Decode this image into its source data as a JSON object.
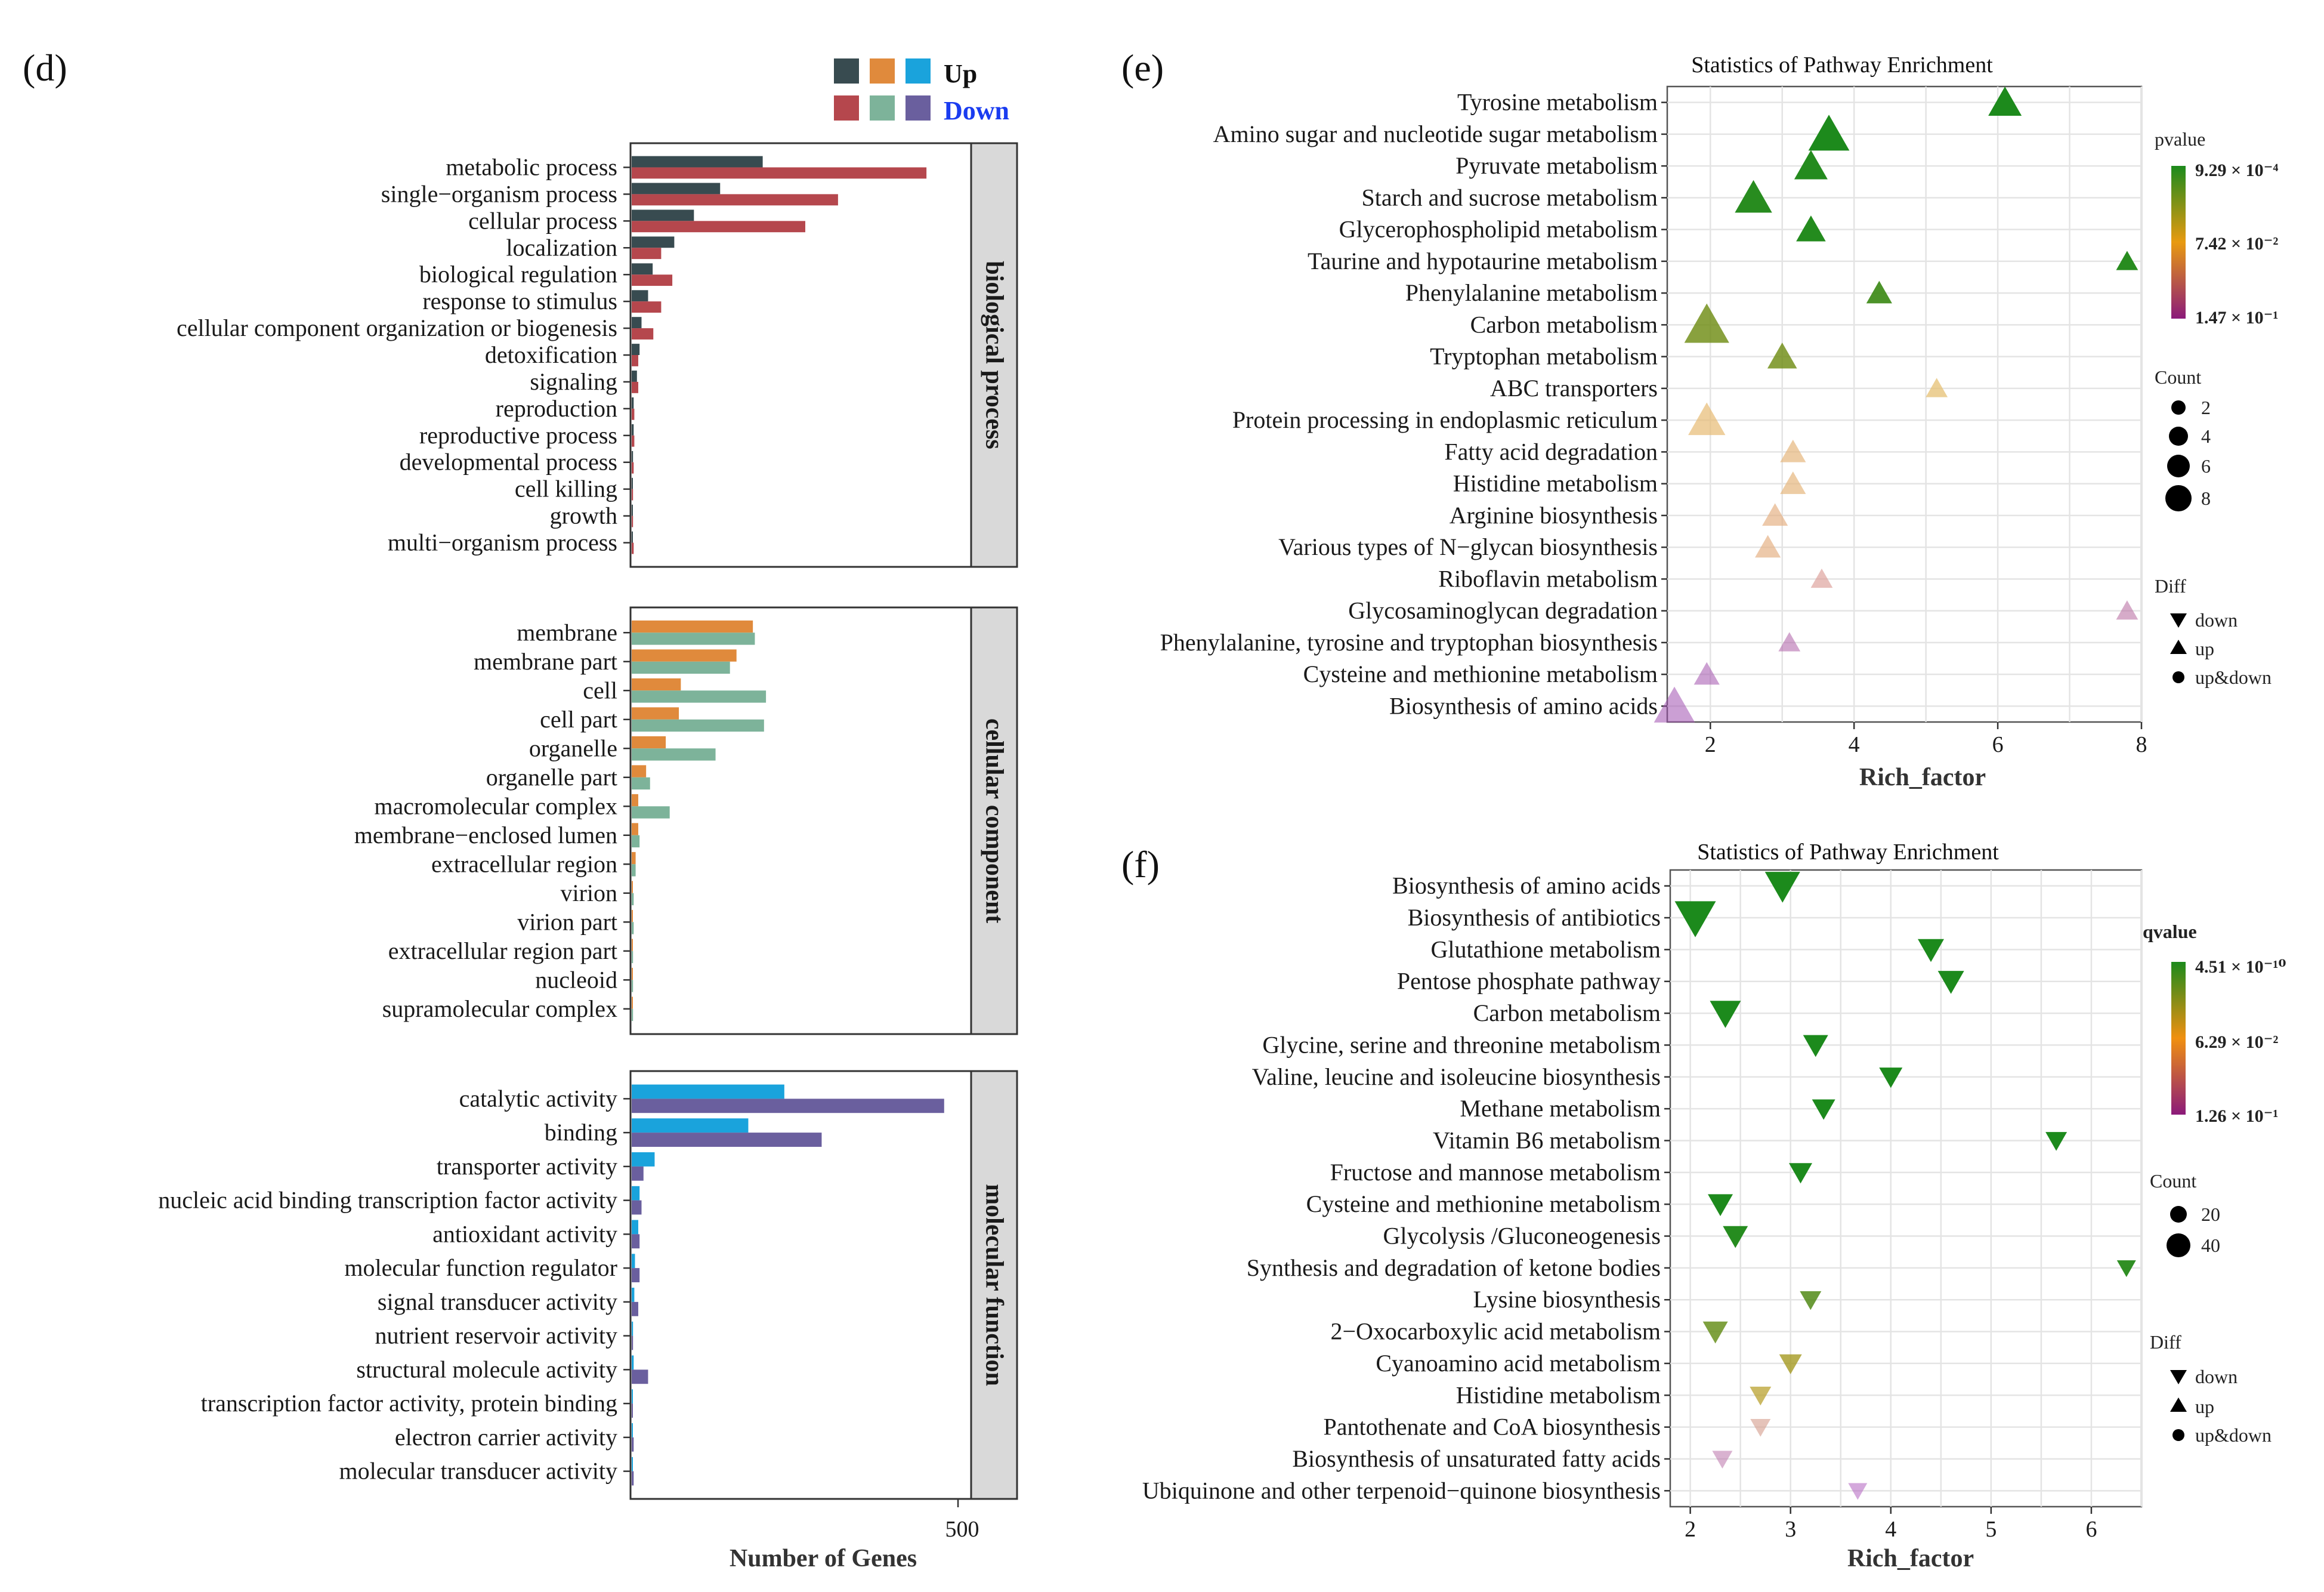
{
  "chart_data": [
    {
      "panel": "(d)",
      "type": "bar",
      "orientation": "horizontal",
      "xlabel": "Number of Genes",
      "xticks": [
        "500"
      ],
      "xlim": [
        0,
        520
      ],
      "legend": {
        "up_label": "Up",
        "down_label": "Down",
        "up_colors": [
          "#384B50",
          "#E08A3C",
          "#1AA3DC"
        ],
        "down_colors": [
          "#B5474D",
          "#7DB39A",
          "#6A5F9E"
        ]
      },
      "facets": [
        {
          "name": "biological process",
          "up_color": "#384B50",
          "down_color": "#B5474D",
          "categories": [
            "metabolic process",
            "single−organism process",
            "cellular process",
            "localization",
            "biological regulation",
            "response to stimulus",
            "cellular component organization or biogenesis",
            "detoxification",
            "signaling",
            "reproduction",
            "reproductive process",
            "developmental process",
            "cell killing",
            "growth",
            "multi−organism process"
          ],
          "up": [
            200,
            135,
            95,
            65,
            32,
            25,
            15,
            12,
            8,
            3,
            3,
            2,
            1,
            1,
            1
          ],
          "down": [
            450,
            315,
            265,
            45,
            62,
            45,
            33,
            10,
            10,
            4,
            4,
            3,
            2,
            2,
            3
          ]
        },
        {
          "name": "cellular component",
          "up_color": "#E08A3C",
          "down_color": "#7DB39A",
          "categories": [
            "membrane",
            "membrane part",
            "cell",
            "cell part",
            "organelle",
            "organelle part",
            "macromolecular complex",
            "membrane−enclosed lumen",
            "extracellular region",
            "virion",
            "virion part",
            "extracellular region part",
            "nucleoid",
            "supramolecular complex"
          ],
          "up": [
            185,
            160,
            75,
            72,
            52,
            22,
            10,
            10,
            6,
            1,
            1,
            1,
            1,
            1
          ],
          "down": [
            188,
            150,
            205,
            202,
            128,
            28,
            58,
            12,
            6,
            3,
            3,
            2,
            2,
            2
          ]
        },
        {
          "name": "molecular function",
          "up_color": "#1AA3DC",
          "down_color": "#6A5F9E",
          "categories": [
            "catalytic activity",
            "binding",
            "transporter activity",
            "nucleic acid binding transcription factor activity",
            "antioxidant activity",
            "molecular function regulator",
            "signal transducer activity",
            "nutrient reservoir activity",
            "structural molecule activity",
            "transcription factor activity, protein binding",
            "electron carrier activity",
            "molecular transducer activity"
          ],
          "up": [
            233,
            178,
            35,
            12,
            10,
            5,
            4,
            2,
            3,
            1,
            1,
            1
          ],
          "down": [
            477,
            290,
            18,
            15,
            12,
            12,
            10,
            2,
            25,
            1,
            3,
            3
          ]
        }
      ]
    },
    {
      "panel": "(e)",
      "type": "scatter",
      "title": "Statistics of Pathway Enrichment",
      "xlabel": "Rich_factor",
      "xlim": [
        1.4,
        8.0
      ],
      "xticks": [
        2,
        4,
        6,
        8
      ],
      "color_legend_title": "pvalue",
      "color_labels": [
        "9.29 × 10⁻⁴",
        "7.42 × 10⁻²",
        "1.47 × 10⁻¹"
      ],
      "size_legend_title": "Count",
      "size_labels": [
        "2",
        "4",
        "6",
        "8"
      ],
      "shape_legend_title": "Diff",
      "shape_labels": [
        "down",
        "up",
        "up&down"
      ],
      "categories": [
        "Tyrosine metabolism",
        "Amino sugar and nucleotide sugar metabolism",
        "Pyruvate metabolism",
        "Starch and sucrose metabolism",
        "Glycerophospholipid metabolism",
        "Taurine and hypotaurine metabolism",
        "Phenylalanine metabolism",
        "Carbon metabolism",
        "Tryptophan metabolism",
        "ABC transporters",
        "Protein processing in endoplasmic reticulum",
        "Fatty acid degradation",
        "Histidine metabolism",
        "Arginine biosynthesis",
        "Various types of N−glycan biosynthesis",
        "Riboflavin metabolism",
        "Glycosaminoglycan degradation",
        "Phenylalanine, tyrosine and tryptophan biosynthesis",
        "Cysteine and methionine metabolism",
        "Biosynthesis of amino acids"
      ],
      "x": [
        6.1,
        3.65,
        3.4,
        2.6,
        3.4,
        7.8,
        4.35,
        1.95,
        3.0,
        5.15,
        1.95,
        3.15,
        3.15,
        2.9,
        2.8,
        3.55,
        7.8,
        3.1,
        1.95,
        1.5
      ],
      "count": [
        5,
        7,
        5,
        6,
        4,
        2,
        3,
        8,
        4,
        2,
        6,
        3,
        3,
        3,
        3,
        2,
        2,
        2,
        3,
        7
      ],
      "pvalue": [
        0.001,
        0.001,
        0.004,
        0.006,
        0.004,
        0.006,
        0.025,
        0.06,
        0.06,
        0.09,
        0.095,
        0.1,
        0.1,
        0.105,
        0.105,
        0.12,
        0.135,
        0.14,
        0.145,
        0.147
      ],
      "direction": [
        "up",
        "up",
        "up",
        "up",
        "up",
        "up",
        "up",
        "up",
        "up",
        "up",
        "up",
        "up",
        "up",
        "up",
        "up",
        "up",
        "up",
        "up",
        "up",
        "up"
      ]
    },
    {
      "panel": "(f)",
      "type": "scatter",
      "title": "Statistics of Pathway Enrichment",
      "xlabel": "Rich_factor",
      "xlim": [
        1.8,
        6.5
      ],
      "xticks": [
        2,
        3,
        4,
        5,
        6
      ],
      "color_legend_title": "qvalue",
      "color_labels": [
        "4.51 × 10⁻¹⁰",
        "6.29 × 10⁻²",
        "1.26 × 10⁻¹"
      ],
      "size_legend_title": "Count",
      "size_labels": [
        "20",
        "40"
      ],
      "shape_legend_title": "Diff",
      "shape_labels": [
        "down",
        "up",
        "up&down"
      ],
      "categories": [
        "Biosynthesis of amino acids",
        "Biosynthesis of antibiotics",
        "Glutathione metabolism",
        "Pentose phosphate pathway",
        "Carbon metabolism",
        "Glycine, serine and threonine metabolism",
        "Valine, leucine and isoleucine biosynthesis",
        "Methane metabolism",
        "Vitamin B6 metabolism",
        "Fructose and mannose metabolism",
        "Cysteine and methionine metabolism",
        "Glycolysis /Gluconeogenesis",
        "Synthesis and degradation of ketone bodies",
        "Lysine biosynthesis",
        "2−Oxocarboxylic acid metabolism",
        "Cyanoamino acid metabolism",
        "Histidine metabolism",
        "Pantothenate and CoA biosynthesis",
        "Biosynthesis of unsaturated fatty acids",
        "Ubiquinone and other terpenoid−quinone biosynthesis"
      ],
      "x": [
        2.92,
        2.05,
        4.4,
        4.6,
        2.35,
        3.25,
        4.0,
        3.33,
        5.65,
        3.1,
        2.3,
        2.45,
        6.35,
        3.2,
        2.25,
        3.0,
        2.7,
        2.7,
        2.32,
        3.67
      ],
      "count": [
        35,
        45,
        20,
        20,
        28,
        18,
        15,
        15,
        12,
        15,
        18,
        18,
        8,
        12,
        18,
        14,
        12,
        10,
        10,
        8
      ],
      "qvalue": [
        0.0,
        0.0,
        0.0,
        0.0,
        0.0,
        0.0,
        0.0,
        0.0,
        0.0,
        0.0,
        0.001,
        0.005,
        0.01,
        0.04,
        0.045,
        0.06,
        0.07,
        0.11,
        0.12,
        0.126
      ],
      "direction": [
        "down",
        "down",
        "down",
        "down",
        "down",
        "down",
        "down",
        "down",
        "down",
        "down",
        "down",
        "down",
        "down",
        "down",
        "down",
        "down",
        "down",
        "down",
        "down",
        "down"
      ]
    }
  ]
}
